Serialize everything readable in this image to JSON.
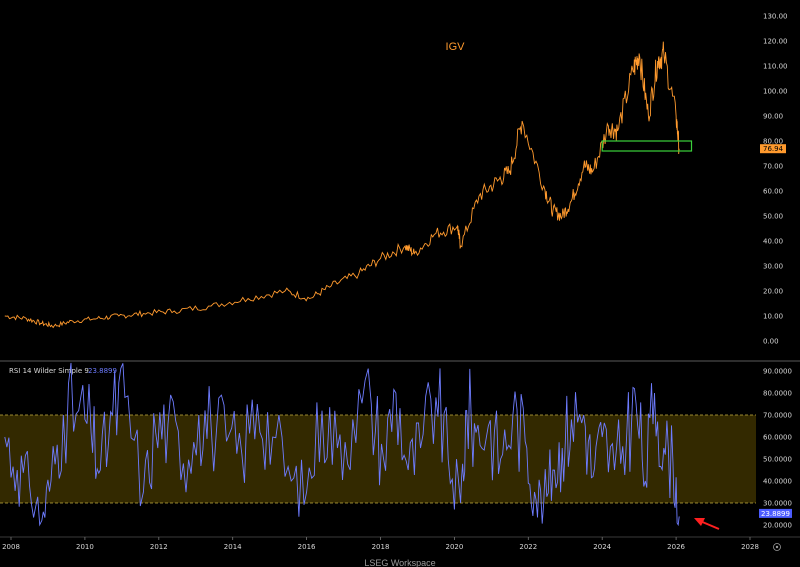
{
  "chart_data": [
    {
      "type": "line",
      "title": "IGV",
      "series": [
        {
          "name": "IGV",
          "x": [
            "2007-11",
            "2008-06",
            "2008-11",
            "2009-03",
            "2009-09",
            "2010-05",
            "2010-12",
            "2011-08",
            "2012-06",
            "2013-06",
            "2014-06",
            "2015-06",
            "2016-02",
            "2016-09",
            "2017-06",
            "2018-01",
            "2018-09",
            "2018-12",
            "2019-07",
            "2020-02",
            "2020-03",
            "2020-09",
            "2021-03",
            "2021-07",
            "2021-11",
            "2022-06",
            "2022-09",
            "2022-12",
            "2023-03",
            "2023-07",
            "2023-10",
            "2024-03",
            "2024-06",
            "2024-11",
            "2025-01",
            "2025-04",
            "2025-07",
            "2025-09",
            "2026-01",
            "2026-02"
          ],
          "values": [
            10,
            9,
            7,
            6,
            8,
            9,
            10,
            11,
            12,
            14,
            17,
            20,
            17,
            22,
            27,
            33,
            38,
            35,
            43,
            46,
            38,
            58,
            64,
            68,
            88,
            62,
            52,
            50,
            56,
            70,
            68,
            86,
            84,
            108,
            115,
            90,
            112,
            115,
            90,
            76.94
          ]
        }
      ],
      "last_value": "76.94",
      "ylim": [
        -5,
        130
      ],
      "yticks": [
        "0.00",
        "10.00",
        "20.00",
        "30.00",
        "40.00",
        "50.00",
        "60.00",
        "70.00",
        "80.00",
        "90.00",
        "100.00",
        "110.00",
        "120.00",
        "130.00"
      ],
      "xticks": [
        "2008",
        "2010",
        "2012",
        "2014",
        "2016",
        "2018",
        "2020",
        "2022",
        "2024",
        "2026",
        "2028"
      ],
      "support_zone": {
        "x_start": "2024-01",
        "x_end": "2026-06",
        "y_low": 76,
        "y_high": 80
      },
      "colors": {
        "line": "#ff9a2e",
        "zone": "#3bd13b",
        "background": "#000000"
      }
    },
    {
      "type": "line",
      "title": "RSI 14 Wilder Simple 9",
      "series": [
        {
          "name": "RSI 14 Wilder Simple 9",
          "x": [
            "2007-11",
            "2008-03",
            "2008-07",
            "2008-11",
            "2009-02",
            "2009-06",
            "2009-11",
            "2010-03",
            "2010-06",
            "2010-10",
            "2011-02",
            "2011-08",
            "2011-12",
            "2012-04",
            "2012-09",
            "2013-02",
            "2013-06",
            "2013-11",
            "2014-04",
            "2014-09",
            "2015-02",
            "2015-08",
            "2016-01",
            "2016-06",
            "2016-11",
            "2017-04",
            "2017-10",
            "2018-02",
            "2018-06",
            "2018-10",
            "2019-02",
            "2019-07",
            "2019-11",
            "2020-03",
            "2020-05",
            "2020-08",
            "2020-12",
            "2021-04",
            "2021-08",
            "2021-12",
            "2022-03",
            "2022-06",
            "2022-09",
            "2022-12",
            "2023-03",
            "2023-07",
            "2023-10",
            "2024-01",
            "2024-05",
            "2024-09",
            "2024-12",
            "2025-03",
            "2025-06",
            "2025-09",
            "2025-12",
            "2026-02"
          ],
          "values": [
            60,
            45,
            38,
            22,
            40,
            70,
            72,
            62,
            45,
            70,
            78,
            35,
            62,
            66,
            48,
            70,
            65,
            58,
            52,
            75,
            60,
            40,
            35,
            72,
            55,
            68,
            75,
            50,
            80,
            45,
            55,
            78,
            50,
            30,
            72,
            62,
            65,
            50,
            70,
            58,
            35,
            30,
            45,
            55,
            68,
            70,
            42,
            60,
            45,
            62,
            75,
            40,
            80,
            55,
            48,
            23.89
          ]
        }
      ],
      "last_value": "23.8899",
      "ylim": [
        18,
        90
      ],
      "yticks": [
        "20.0000",
        "30.0000",
        "40.0000",
        "50.0000",
        "60.0000",
        "70.0000",
        "80.0000",
        "90.0000"
      ],
      "bands": {
        "lower": 30,
        "upper": 70
      },
      "colors": {
        "line": "#6e7cff",
        "band": "#5c4a00"
      }
    }
  ],
  "footer": {
    "source": "LSEG Workspace"
  },
  "colors": {
    "background": "#000000",
    "accent": "#ff9a2e",
    "rsi": "#6e7cff",
    "arrow": "#ff2020"
  }
}
